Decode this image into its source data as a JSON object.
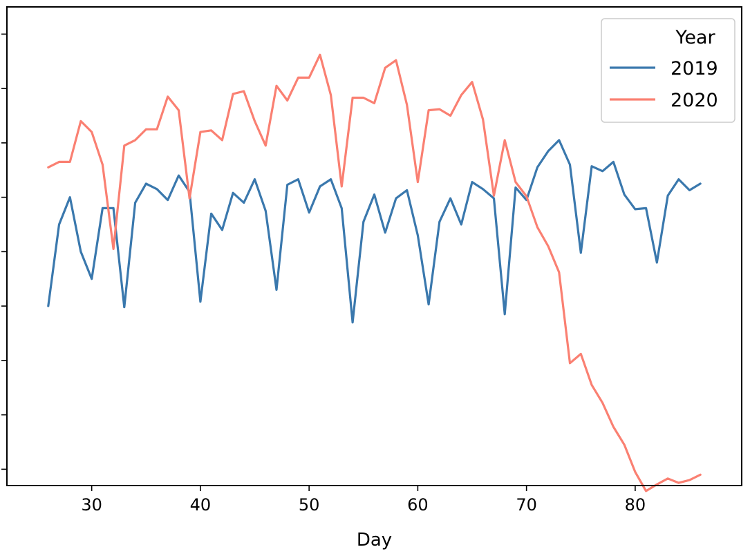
{
  "chart_data": {
    "type": "line",
    "xlabel": "Day",
    "ylabel": "",
    "xlim": [
      22.2,
      89.8
    ],
    "ylim": [
      -0.3,
      8.5
    ],
    "x_ticks": [
      30,
      40,
      50,
      60,
      70,
      80
    ],
    "y_ticks": [
      0,
      1,
      2,
      3,
      4,
      5,
      6,
      7,
      8
    ],
    "show_y_tick_labels": false,
    "grid": false,
    "legend": {
      "title": "Year",
      "position": "top-right"
    },
    "series": [
      {
        "name": "2019",
        "color": "#3a78ad",
        "x": [
          26,
          27,
          28,
          29,
          30,
          31,
          32,
          33,
          34,
          35,
          36,
          37,
          38,
          39,
          40,
          41,
          42,
          43,
          44,
          45,
          46,
          47,
          48,
          49,
          50,
          51,
          52,
          53,
          54,
          55,
          56,
          57,
          58,
          59,
          60,
          61,
          62,
          63,
          64,
          65,
          66,
          67,
          68,
          69,
          70,
          71,
          72,
          73,
          74,
          75,
          76,
          77,
          78,
          79,
          80,
          81,
          82,
          83,
          84,
          85,
          86
        ],
        "y": [
          3.0,
          4.5,
          5.0,
          4.0,
          3.5,
          4.8,
          4.8,
          2.98,
          4.9,
          5.25,
          5.15,
          4.95,
          5.4,
          5.1,
          3.08,
          4.7,
          4.4,
          5.08,
          4.9,
          5.33,
          4.75,
          3.3,
          5.23,
          5.33,
          4.72,
          5.2,
          5.33,
          4.8,
          2.7,
          4.55,
          5.05,
          4.35,
          4.98,
          5.13,
          4.3,
          3.03,
          4.55,
          4.98,
          4.5,
          5.28,
          5.15,
          4.98,
          2.85,
          5.18,
          4.95,
          5.55,
          5.85,
          6.05,
          5.6,
          3.98,
          5.57,
          5.48,
          5.65,
          5.05,
          4.78,
          4.8,
          3.8,
          5.03,
          5.33,
          5.13,
          5.25
        ]
      },
      {
        "name": "2020",
        "color": "#fa8072",
        "x": [
          26,
          27,
          28,
          29,
          30,
          31,
          32,
          33,
          34,
          35,
          36,
          37,
          38,
          39,
          40,
          41,
          42,
          43,
          44,
          45,
          46,
          47,
          48,
          49,
          50,
          51,
          52,
          53,
          54,
          55,
          56,
          57,
          58,
          59,
          60,
          61,
          62,
          63,
          64,
          65,
          66,
          67,
          68,
          69,
          70,
          71,
          72,
          73,
          74,
          75,
          76,
          77,
          78,
          79,
          80,
          81,
          82,
          83,
          84,
          85,
          86
        ],
        "y": [
          5.55,
          5.65,
          5.65,
          6.4,
          6.2,
          5.6,
          4.05,
          5.95,
          6.05,
          6.25,
          6.25,
          6.85,
          6.6,
          4.98,
          6.2,
          6.23,
          6.05,
          6.9,
          6.95,
          6.4,
          5.95,
          7.05,
          6.78,
          7.2,
          7.2,
          7.62,
          6.88,
          5.2,
          6.83,
          6.83,
          6.73,
          7.38,
          7.52,
          6.7,
          5.28,
          6.6,
          6.62,
          6.5,
          6.88,
          7.12,
          6.43,
          5.03,
          6.05,
          5.28,
          5.02,
          4.45,
          4.1,
          3.62,
          1.95,
          2.12,
          1.55,
          1.22,
          0.78,
          0.45,
          -0.05,
          -0.4,
          -0.28,
          -0.17,
          -0.25,
          -0.2,
          -0.1
        ]
      }
    ]
  }
}
